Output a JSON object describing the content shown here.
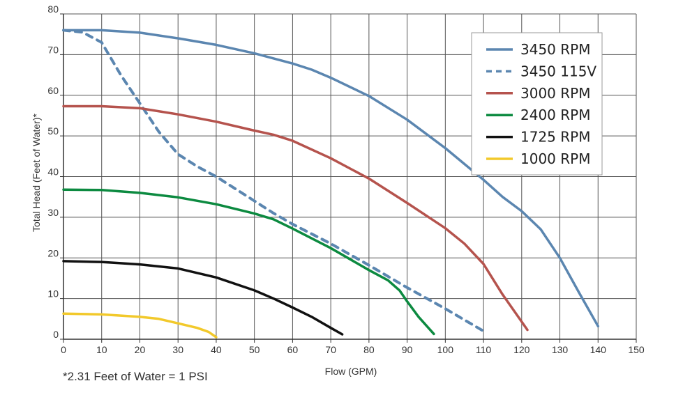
{
  "chart_data": {
    "type": "line",
    "xlabel": "Flow (GPM)",
    "ylabel": "Total Head (Feet of Water)*",
    "xlim": [
      0,
      150
    ],
    "ylim": [
      0,
      80
    ],
    "xticks": [
      0,
      10,
      20,
      30,
      40,
      50,
      60,
      70,
      80,
      90,
      100,
      110,
      120,
      130,
      140,
      150
    ],
    "yticks": [
      0,
      10,
      20,
      30,
      40,
      50,
      60,
      70,
      80
    ],
    "grid": true,
    "legend_position": "top-right",
    "footnote": "*2.31 Feet of Water = 1 PSI",
    "series": [
      {
        "name": "3450 RPM",
        "color": "#5b86b0",
        "dashed": false,
        "points": [
          [
            0,
            76
          ],
          [
            10,
            76
          ],
          [
            20,
            75.4
          ],
          [
            30,
            74
          ],
          [
            40,
            72.4
          ],
          [
            50,
            70.3
          ],
          [
            60,
            67.8
          ],
          [
            65,
            66.3
          ],
          [
            70,
            64.3
          ],
          [
            80,
            59.8
          ],
          [
            90,
            54
          ],
          [
            100,
            47
          ],
          [
            110,
            39.2
          ],
          [
            115,
            35
          ],
          [
            120,
            31.5
          ],
          [
            125,
            27
          ],
          [
            130,
            20
          ],
          [
            135,
            11.5
          ],
          [
            140,
            3.2
          ]
        ]
      },
      {
        "name": "3450 115V",
        "color": "#5b86b0",
        "dashed": true,
        "points": [
          [
            0,
            76
          ],
          [
            5,
            75.5
          ],
          [
            10,
            73
          ],
          [
            15,
            65
          ],
          [
            20,
            58
          ],
          [
            25,
            51
          ],
          [
            30,
            45.5
          ],
          [
            35,
            42.5
          ],
          [
            40,
            40
          ],
          [
            45,
            37
          ],
          [
            50,
            34
          ],
          [
            55,
            31
          ],
          [
            60,
            28.3
          ],
          [
            70,
            23.5
          ],
          [
            80,
            18.2
          ],
          [
            90,
            12.7
          ],
          [
            100,
            7.5
          ],
          [
            110,
            2
          ]
        ]
      },
      {
        "name": "3000 RPM",
        "color": "#b5534d",
        "dashed": false,
        "points": [
          [
            0,
            57.3
          ],
          [
            10,
            57.3
          ],
          [
            20,
            56.8
          ],
          [
            30,
            55.3
          ],
          [
            40,
            53.5
          ],
          [
            50,
            51.3
          ],
          [
            55,
            50.3
          ],
          [
            60,
            48.8
          ],
          [
            70,
            44.5
          ],
          [
            80,
            39.5
          ],
          [
            90,
            33.5
          ],
          [
            100,
            27.3
          ],
          [
            105,
            23.5
          ],
          [
            110,
            18.5
          ],
          [
            115,
            11
          ],
          [
            120,
            4.3
          ],
          [
            121.5,
            2.3
          ]
        ]
      },
      {
        "name": "2400 RPM",
        "color": "#0c8a40",
        "dashed": false,
        "points": [
          [
            0,
            36.8
          ],
          [
            10,
            36.7
          ],
          [
            20,
            36
          ],
          [
            30,
            34.9
          ],
          [
            40,
            33.2
          ],
          [
            50,
            30.9
          ],
          [
            55,
            29.5
          ],
          [
            60,
            27.2
          ],
          [
            70,
            22.4
          ],
          [
            80,
            17
          ],
          [
            85,
            14.5
          ],
          [
            88,
            12
          ],
          [
            90,
            9.3
          ],
          [
            93,
            5.5
          ],
          [
            97,
            1.3
          ]
        ]
      },
      {
        "name": "1725 RPM",
        "color": "#111111",
        "dashed": false,
        "points": [
          [
            0,
            19.2
          ],
          [
            10,
            19
          ],
          [
            20,
            18.4
          ],
          [
            30,
            17.4
          ],
          [
            40,
            15.2
          ],
          [
            50,
            12
          ],
          [
            55,
            10
          ],
          [
            60,
            7.8
          ],
          [
            65,
            5.5
          ],
          [
            70,
            2.8
          ],
          [
            73,
            1.2
          ]
        ]
      },
      {
        "name": "1000 RPM",
        "color": "#f2c92b",
        "dashed": false,
        "points": [
          [
            0,
            6.3
          ],
          [
            10,
            6.1
          ],
          [
            20,
            5.5
          ],
          [
            25,
            5
          ],
          [
            30,
            3.9
          ],
          [
            35,
            2.8
          ],
          [
            38,
            1.8
          ],
          [
            40,
            0.5
          ]
        ]
      }
    ]
  }
}
